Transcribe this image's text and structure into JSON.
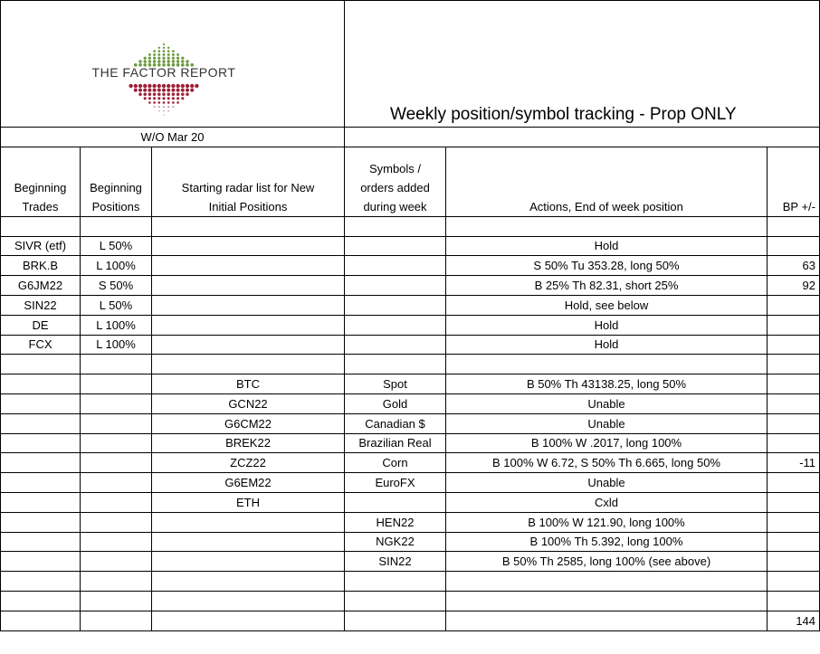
{
  "header": {
    "logo_text": "THE FACTOR REPORT",
    "title": "Weekly position/symbol tracking  - Prop ONLY",
    "week": "W/O Mar 20"
  },
  "table": {
    "columns": [
      [
        "Beginning",
        "Trades"
      ],
      [
        "Beginning",
        "Positions"
      ],
      [
        "Starting radar list for New",
        "Initial Positions"
      ],
      [
        "Symbols /",
        "orders added",
        "during week"
      ],
      [
        "Actions, End of week position"
      ],
      [
        "BP +/-"
      ]
    ],
    "rows": [
      [
        null,
        null,
        null,
        null,
        null,
        null
      ],
      [
        "SIVR (etf)",
        "L 50%",
        null,
        null,
        "Hold",
        null
      ],
      [
        "BRK.B",
        "L 100%",
        null,
        null,
        "S 50% Tu 353.28, long 50%",
        63
      ],
      [
        "G6JM22",
        "S 50%",
        null,
        null,
        "B 25% Th 82.31, short 25%",
        92
      ],
      [
        "SIN22",
        "L 50%",
        null,
        null,
        "Hold, see below",
        null
      ],
      [
        "DE",
        "L 100%",
        null,
        null,
        "Hold",
        null
      ],
      [
        "FCX",
        "L 100%",
        null,
        null,
        "Hold",
        null
      ],
      [
        null,
        null,
        null,
        null,
        null,
        null
      ],
      [
        null,
        null,
        "BTC",
        "Spot",
        "B 50% Th 43138.25, long 50%",
        null
      ],
      [
        null,
        null,
        "GCN22",
        "Gold",
        "Unable",
        null
      ],
      [
        null,
        null,
        "G6CM22",
        "Canadian $",
        "Unable",
        null
      ],
      [
        null,
        null,
        "BREK22",
        "Brazilian Real",
        "B 100% W .2017, long 100%",
        null
      ],
      [
        null,
        null,
        "ZCZ22",
        "Corn",
        "B 100% W 6.72, S 50% Th 6.665, long 50%",
        -11
      ],
      [
        null,
        null,
        "G6EM22",
        "EuroFX",
        "Unable",
        null
      ],
      [
        null,
        null,
        "ETH",
        null,
        "Cxld",
        null
      ],
      [
        null,
        null,
        null,
        "HEN22",
        "B 100% W 121.90, long 100%",
        null
      ],
      [
        null,
        null,
        null,
        "NGK22",
        "B 100% Th 5.392, long 100%",
        null
      ],
      [
        null,
        null,
        null,
        "SIN22",
        "B 50% Th 2585, long 100% (see above)",
        null
      ],
      [
        null,
        null,
        null,
        null,
        null,
        null
      ],
      [
        null,
        null,
        null,
        null,
        null,
        null
      ],
      [
        null,
        null,
        null,
        null,
        null,
        144
      ]
    ]
  }
}
